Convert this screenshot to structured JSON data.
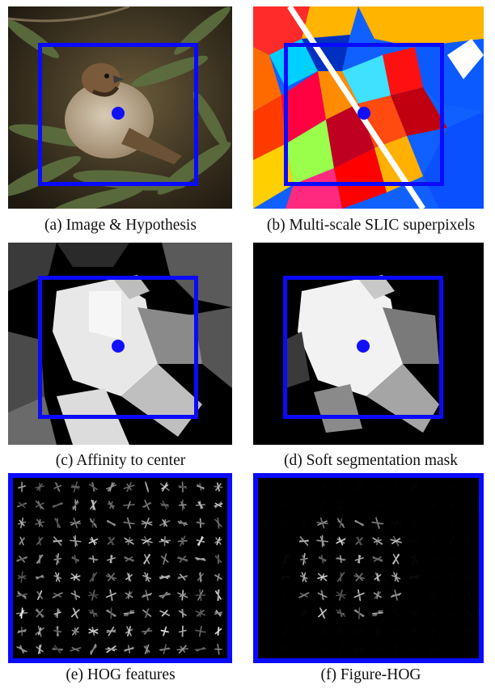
{
  "figure": {
    "panels": [
      {
        "id": "a",
        "caption": "(a) Image & Hypothesis"
      },
      {
        "id": "b",
        "caption": "(b) Multi-scale SLIC superpixels"
      },
      {
        "id": "c",
        "caption": "(c) Affinity to center"
      },
      {
        "id": "d",
        "caption": "(d) Soft segmentation mask"
      },
      {
        "id": "e",
        "caption": "(e) HOG features"
      },
      {
        "id": "f",
        "caption": "(f) Figure-HOG"
      }
    ],
    "colors": {
      "hypothesis_box": "#0a0aff",
      "center_dot": "#1010ff",
      "background": "#ffffff"
    }
  }
}
